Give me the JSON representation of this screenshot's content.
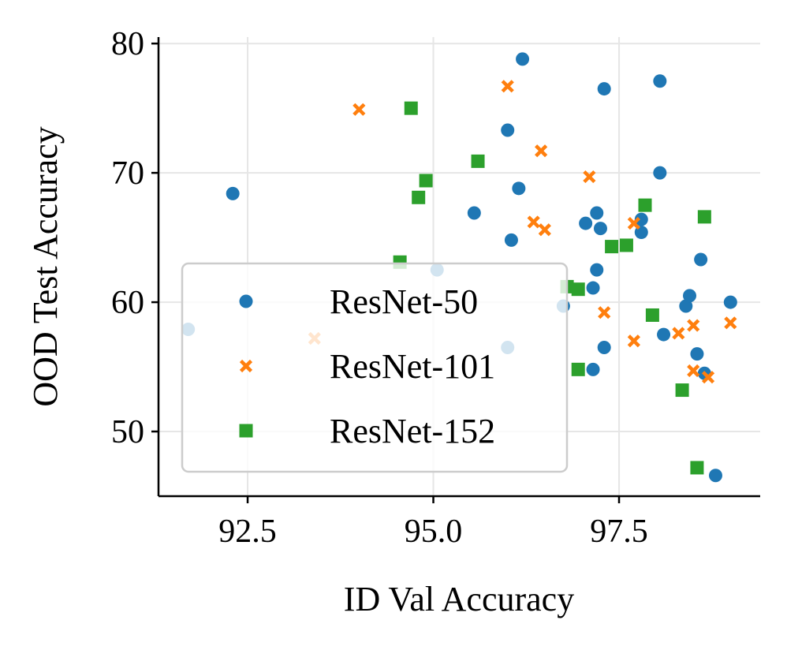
{
  "chart_data": {
    "type": "scatter",
    "title": "",
    "xlabel": "ID Val Accuracy",
    "ylabel": "OOD Test Accuracy",
    "xlim": [
      91.3,
      99.4
    ],
    "ylim": [
      45,
      80.5
    ],
    "xticks": [
      92.5,
      95.0,
      97.5
    ],
    "xtick_labels": [
      "92.5",
      "95.0",
      "97.5"
    ],
    "yticks": [
      50,
      60,
      70,
      80
    ],
    "ytick_labels": [
      "50",
      "60",
      "70",
      "80"
    ],
    "grid": true,
    "legend_position": "lower-left",
    "series": [
      {
        "name": "ResNet-50",
        "marker": "circle",
        "color": "#1f77b4",
        "points": [
          [
            91.7,
            57.9
          ],
          [
            92.3,
            68.4
          ],
          [
            95.05,
            62.5
          ],
          [
            95.55,
            66.9
          ],
          [
            96.0,
            73.3
          ],
          [
            96.0,
            56.5
          ],
          [
            96.05,
            64.8
          ],
          [
            96.15,
            68.8
          ],
          [
            96.2,
            78.8
          ],
          [
            96.75,
            59.7
          ],
          [
            97.05,
            66.1
          ],
          [
            97.15,
            54.8
          ],
          [
            97.15,
            61.1
          ],
          [
            97.2,
            66.9
          ],
          [
            97.2,
            62.5
          ],
          [
            97.25,
            65.7
          ],
          [
            97.3,
            76.5
          ],
          [
            97.3,
            56.5
          ],
          [
            97.8,
            66.4
          ],
          [
            97.8,
            65.4
          ],
          [
            98.05,
            77.1
          ],
          [
            98.05,
            70.0
          ],
          [
            98.1,
            57.5
          ],
          [
            98.4,
            59.7
          ],
          [
            98.45,
            60.5
          ],
          [
            98.55,
            56.0
          ],
          [
            98.6,
            63.3
          ],
          [
            98.65,
            54.5
          ],
          [
            98.8,
            46.6
          ],
          [
            99.0,
            60.0
          ]
        ]
      },
      {
        "name": "ResNet-101",
        "marker": "x",
        "color": "#ff7f0e",
        "points": [
          [
            93.4,
            57.2
          ],
          [
            94.0,
            74.9
          ],
          [
            96.0,
            76.7
          ],
          [
            96.35,
            66.2
          ],
          [
            96.45,
            71.7
          ],
          [
            96.5,
            65.6
          ],
          [
            97.1,
            69.7
          ],
          [
            97.3,
            59.2
          ],
          [
            97.7,
            66.1
          ],
          [
            97.7,
            57.0
          ],
          [
            98.3,
            57.6
          ],
          [
            98.5,
            58.2
          ],
          [
            98.5,
            54.7
          ],
          [
            98.7,
            54.2
          ],
          [
            99.0,
            58.4
          ]
        ]
      },
      {
        "name": "ResNet-152",
        "marker": "square",
        "color": "#2ca02c",
        "points": [
          [
            94.55,
            63.1
          ],
          [
            94.7,
            75.0
          ],
          [
            94.8,
            68.1
          ],
          [
            94.9,
            69.4
          ],
          [
            95.6,
            70.9
          ],
          [
            96.8,
            61.2
          ],
          [
            96.95,
            61.0
          ],
          [
            96.95,
            54.8
          ],
          [
            97.4,
            64.3
          ],
          [
            97.6,
            64.4
          ],
          [
            97.85,
            67.5
          ],
          [
            97.95,
            59.0
          ],
          [
            98.35,
            53.2
          ],
          [
            98.55,
            47.2
          ],
          [
            98.65,
            66.6
          ]
        ]
      }
    ]
  }
}
